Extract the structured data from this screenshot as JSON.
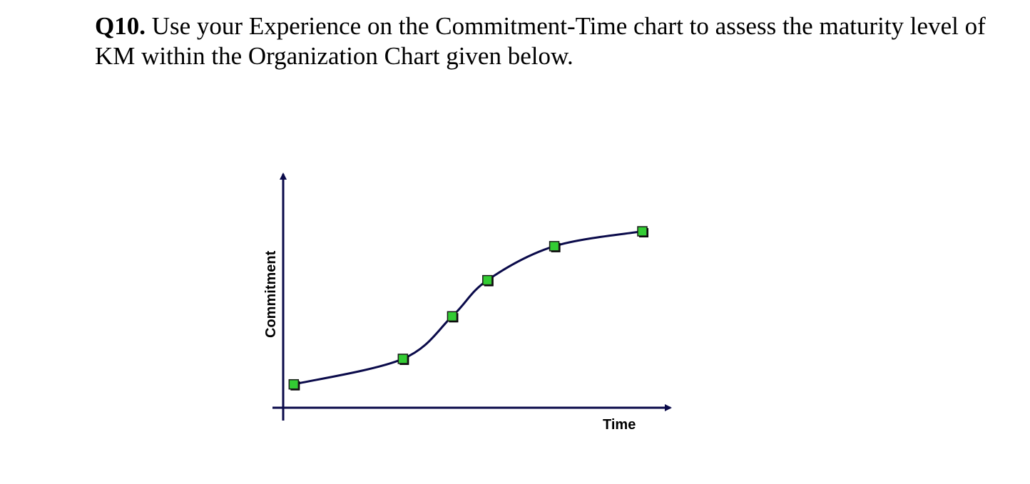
{
  "question": {
    "number": "Q10.",
    "text": " Use your Experience on the Commitment-Time chart to assess the maturity level of KM within the Organization Chart given below."
  },
  "chart_data": {
    "type": "line",
    "xlabel": "Time",
    "ylabel": "Commitment",
    "title": "",
    "grid": false,
    "legend": "none",
    "xlim": [
      0,
      11
    ],
    "ylim": [
      0,
      11
    ],
    "x_ticks": false,
    "y_ticks": false,
    "series": [
      {
        "marker": "square",
        "marker_color": "#33cc33",
        "line_color": "#0a0a4a",
        "x": [
          0.3,
          3.4,
          4.8,
          5.8,
          7.7,
          10.2
        ],
        "y": [
          1.1,
          2.3,
          4.3,
          6.0,
          7.6,
          8.3
        ]
      }
    ]
  }
}
